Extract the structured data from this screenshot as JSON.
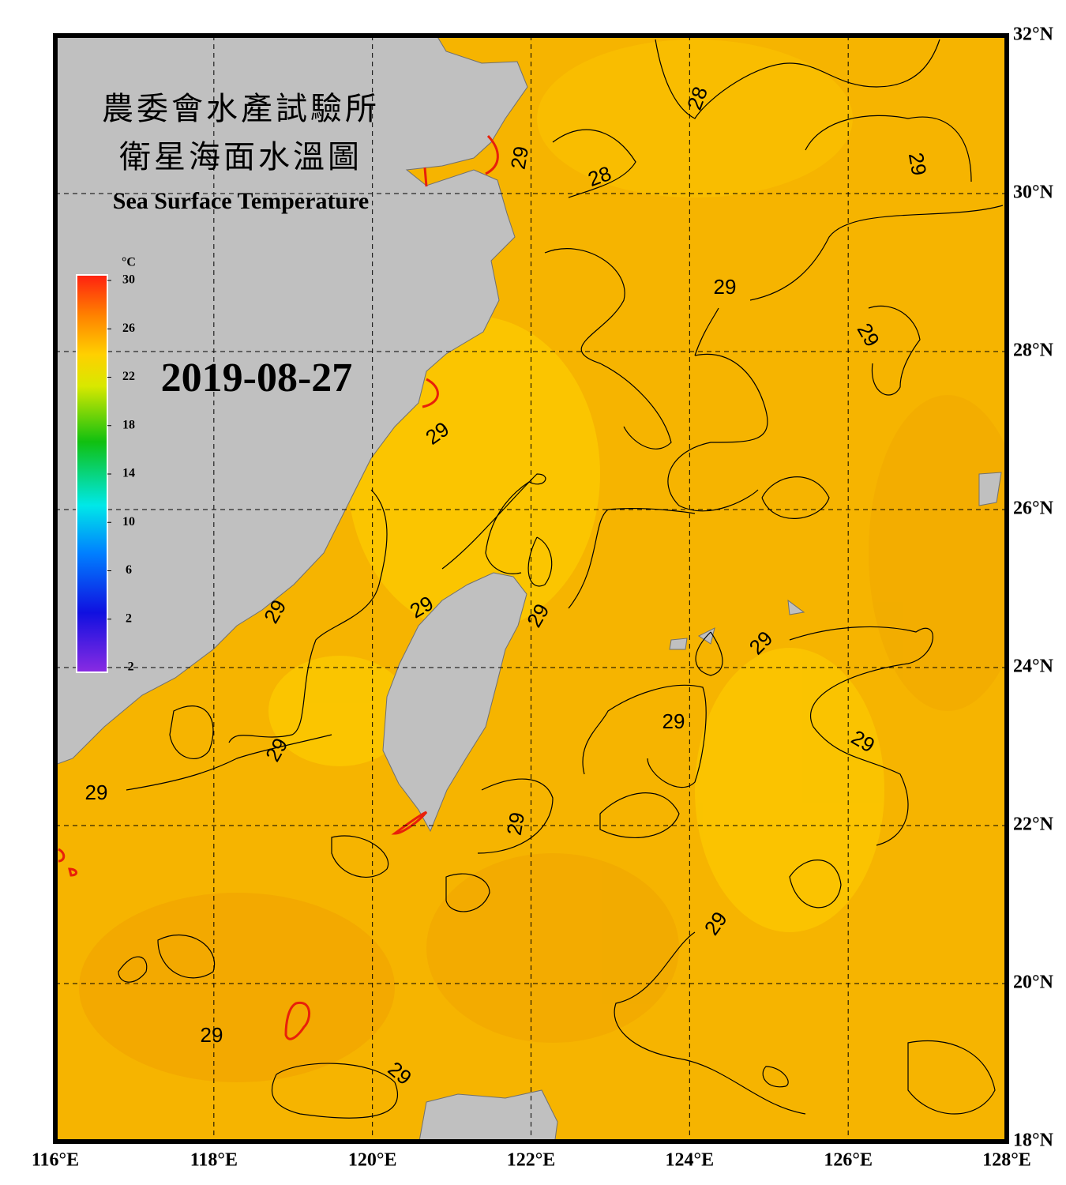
{
  "header": {
    "title_zh": "農委會水產試驗所",
    "subtitle_zh": "衛星海面水溫圖",
    "title_en": "Sea Surface Temperature",
    "date": "2019-08-27"
  },
  "map": {
    "xlim": [
      116,
      128
    ],
    "ylim": [
      18,
      32
    ],
    "lon_ticks": [
      {
        "value": 116,
        "label": "116°E"
      },
      {
        "value": 118,
        "label": "118°E"
      },
      {
        "value": 120,
        "label": "120°E"
      },
      {
        "value": 122,
        "label": "122°E"
      },
      {
        "value": 124,
        "label": "124°E"
      },
      {
        "value": 126,
        "label": "126°E"
      },
      {
        "value": 128,
        "label": "128°E"
      }
    ],
    "lat_ticks": [
      {
        "value": 32,
        "label": "32°N"
      },
      {
        "value": 30,
        "label": "30°N"
      },
      {
        "value": 28,
        "label": "28°N"
      },
      {
        "value": 26,
        "label": "26°N"
      },
      {
        "value": 24,
        "label": "24°N"
      },
      {
        "value": 22,
        "label": "22°N"
      },
      {
        "value": 20,
        "label": "20°N"
      },
      {
        "value": 18,
        "label": "18°N"
      }
    ],
    "contour_labels": [
      28,
      29,
      28,
      29,
      29,
      29,
      29,
      29,
      29,
      29,
      29,
      29,
      29,
      29,
      29,
      29,
      29,
      29,
      29
    ]
  },
  "colorbar": {
    "unit": "°C",
    "range": [
      -2,
      30
    ],
    "ticks": [
      30,
      26,
      22,
      18,
      14,
      10,
      6,
      2,
      -2
    ]
  }
}
